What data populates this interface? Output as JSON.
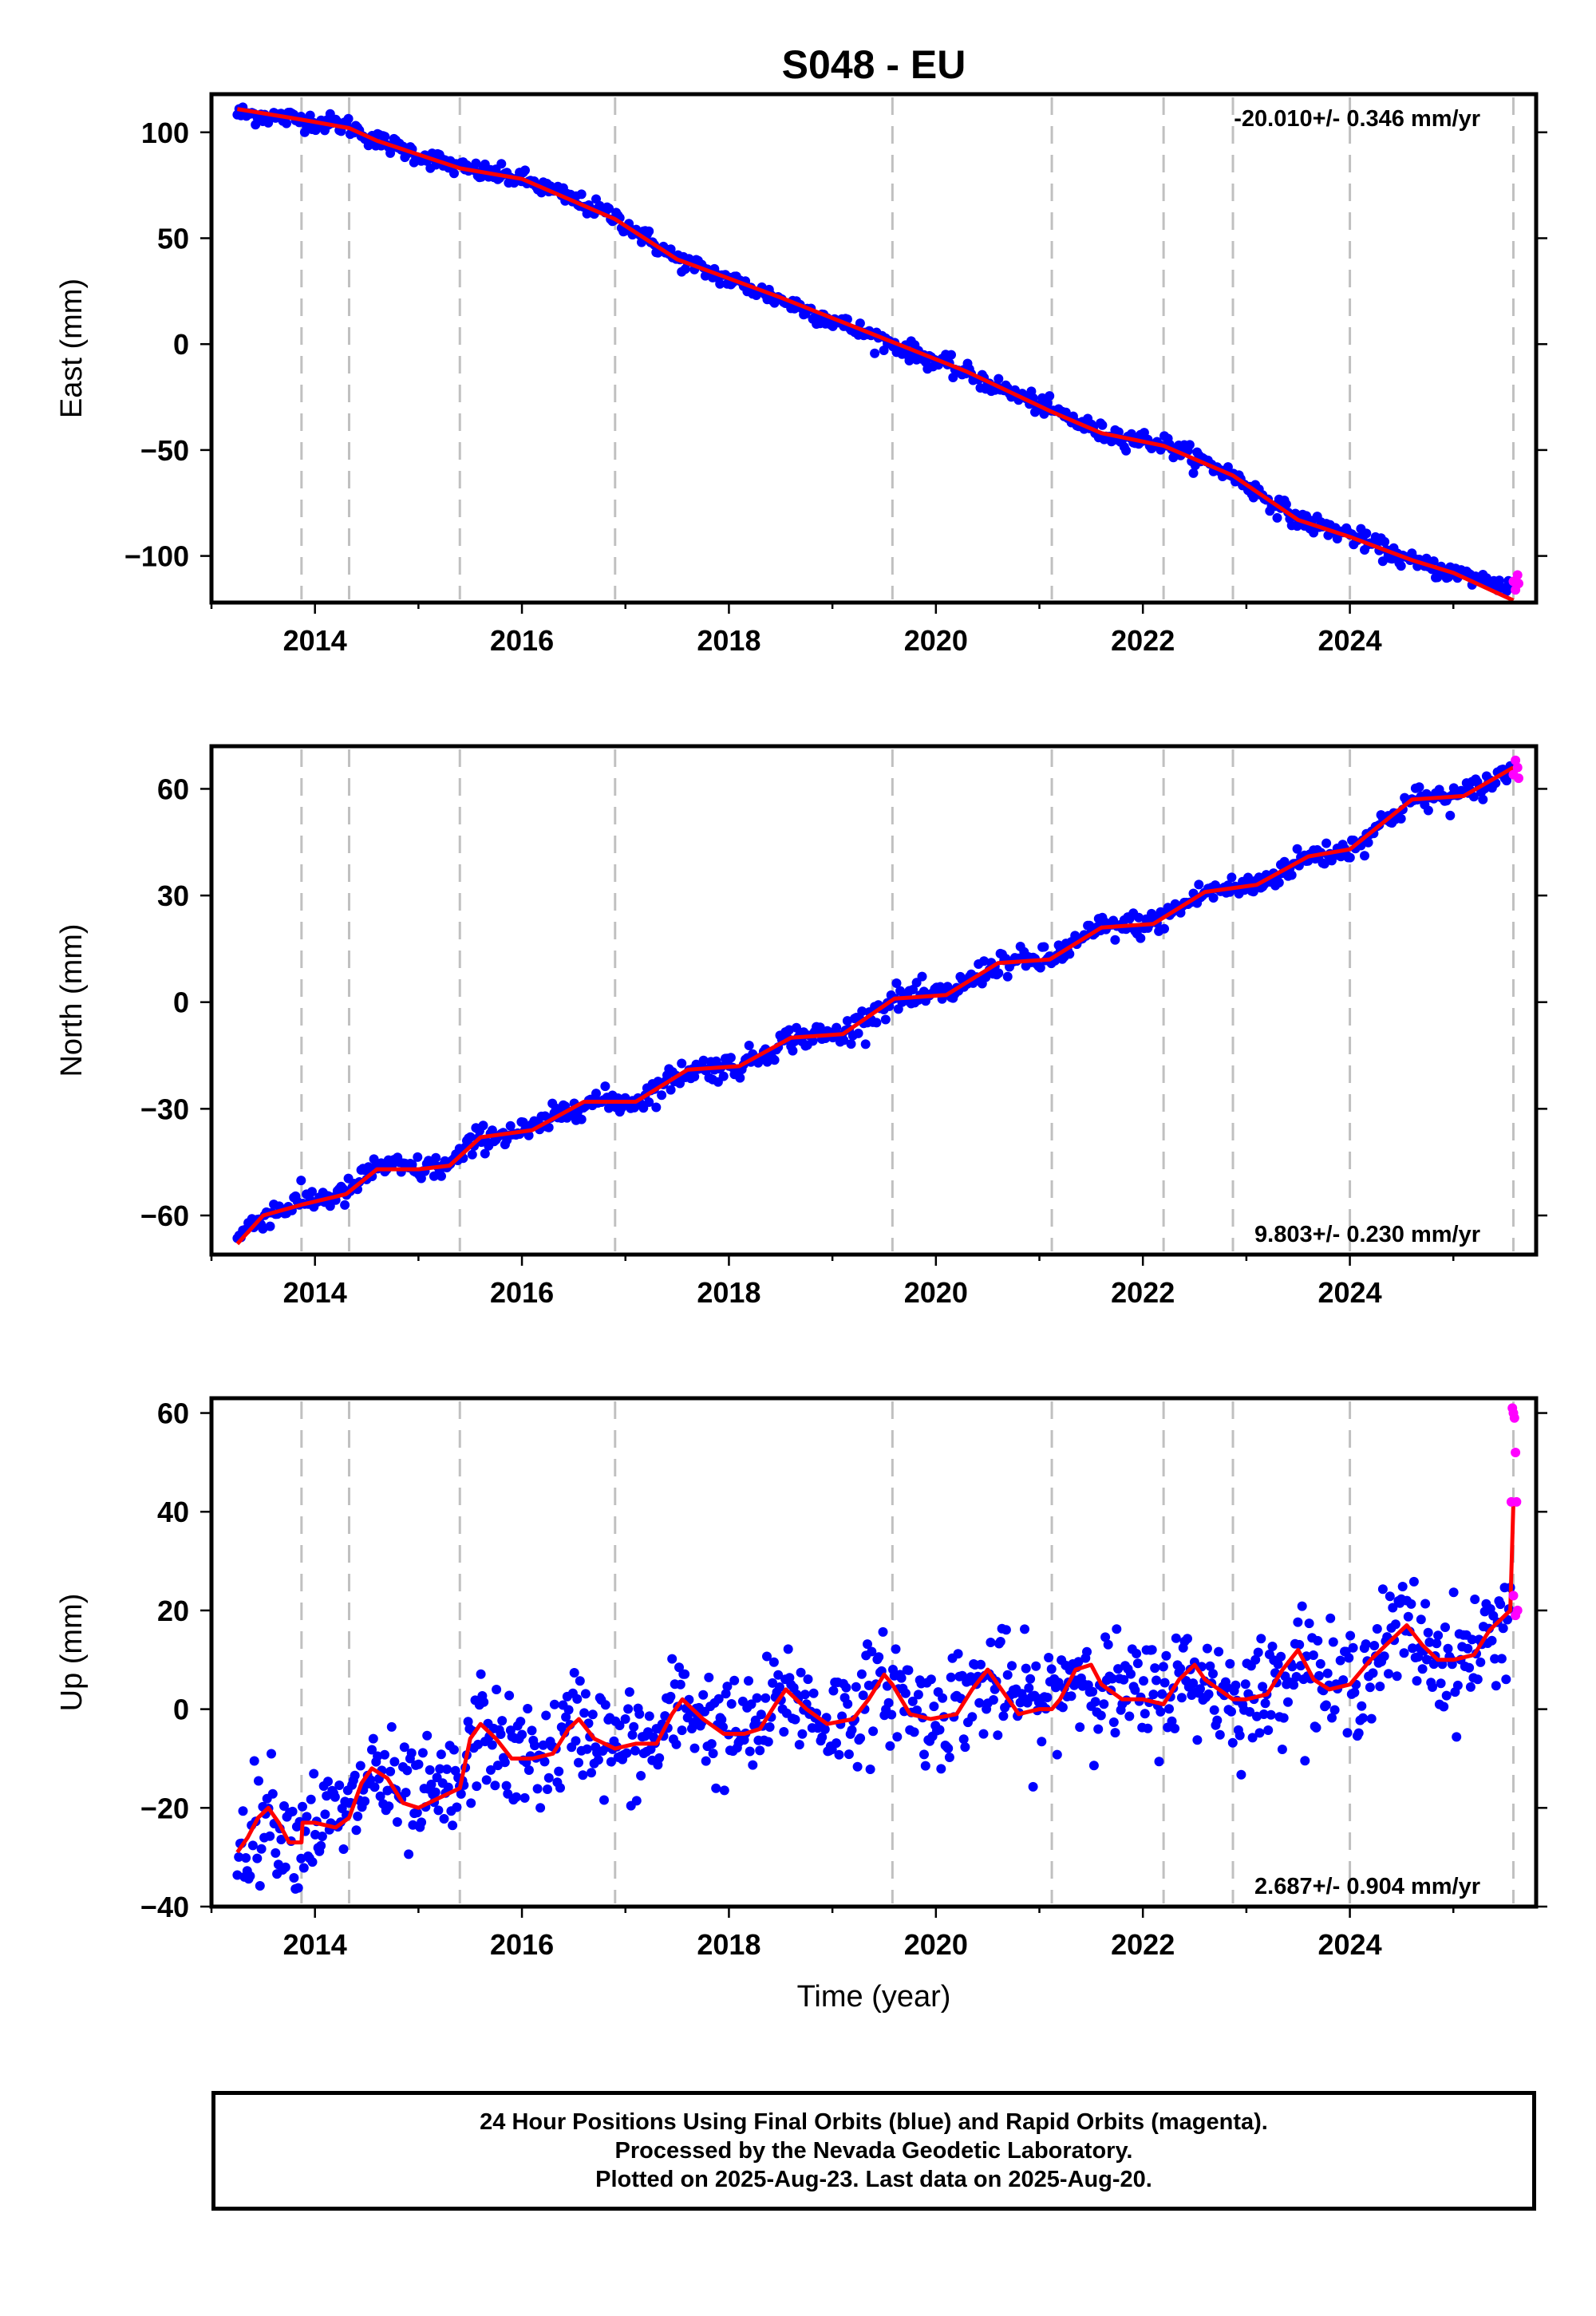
{
  "title": "S048 - EU",
  "colors": {
    "final_points": "#0000ff",
    "rapid_points": "#ff00ff",
    "model_line": "#ff0000",
    "equipment_change_lines": "#c0c0c0"
  },
  "chart_data": [
    {
      "type": "scatter",
      "component": "East",
      "ylabel": "East (mm)",
      "xlabel": "",
      "rate_text": "-20.010+/- 0.346 mm/yr",
      "xlim": [
        2013.0,
        2025.8
      ],
      "ylim": [
        -122,
        118
      ],
      "xticks": [
        2014,
        2016,
        2018,
        2020,
        2022,
        2024
      ],
      "yticks": [
        -100,
        -50,
        0,
        50,
        100
      ],
      "yticklabels": [
        "−100",
        "−50",
        "0",
        "50",
        "100"
      ],
      "equipment_changes": [
        2013.87,
        2014.33,
        2015.4,
        2016.9,
        2019.58,
        2021.12,
        2022.2,
        2022.87,
        2024.0,
        2025.58
      ],
      "model_line": {
        "x": [
          2013.25,
          2013.87,
          2014.33,
          2014.6,
          2015.4,
          2016.0,
          2016.9,
          2017.5,
          2018.5,
          2019.58,
          2020.3,
          2021.12,
          2021.6,
          2022.2,
          2022.87,
          2023.5,
          2024.0,
          2024.6,
          2025.0,
          2025.58
        ],
        "y": [
          111,
          106,
          102,
          96,
          83,
          78,
          59,
          40,
          22,
          1,
          -13,
          -32,
          -42,
          -48,
          -62,
          -83,
          -91,
          -102,
          -108,
          -121
        ]
      },
      "final_series": {
        "trend_x": [
          2013.25,
          2013.87,
          2014.33,
          2014.6,
          2015.4,
          2016.0,
          2016.9,
          2017.5,
          2018.5,
          2019.58,
          2020.3,
          2021.12,
          2021.6,
          2022.2,
          2022.87,
          2023.5,
          2024.0,
          2024.6,
          2025.0,
          2025.58
        ],
        "trend_y": [
          109,
          106,
          103,
          96,
          83,
          78,
          60,
          40,
          21,
          0,
          -14,
          -31,
          -42,
          -47,
          -62,
          -83,
          -90,
          -103,
          -108,
          -115
        ],
        "x_start": 2013.25,
        "x_end": 2025.55,
        "spread": 2.2,
        "count": 700
      },
      "rapid_series": {
        "x": [
          2025.58,
          2025.6,
          2025.62,
          2025.63
        ],
        "y": [
          -112,
          -116,
          -109,
          -113
        ]
      }
    },
    {
      "type": "scatter",
      "component": "North",
      "ylabel": "North (mm)",
      "xlabel": "",
      "rate_text": "9.803+/- 0.230 mm/yr",
      "xlim": [
        2013.0,
        2025.8
      ],
      "ylim": [
        -71,
        72
      ],
      "xticks": [
        2014,
        2016,
        2018,
        2020,
        2022,
        2024
      ],
      "yticks": [
        -60,
        -30,
        0,
        30,
        60
      ],
      "yticklabels": [
        "−60",
        "−30",
        "0",
        "30",
        "60"
      ],
      "equipment_changes": [
        2013.87,
        2014.33,
        2015.4,
        2016.9,
        2019.58,
        2021.12,
        2022.2,
        2022.87,
        2024.0,
        2025.58
      ],
      "model_line": {
        "x": [
          2013.25,
          2013.5,
          2013.87,
          2014.3,
          2014.6,
          2015.0,
          2015.3,
          2015.6,
          2016.1,
          2016.6,
          2017.1,
          2017.6,
          2018.1,
          2018.6,
          2019.1,
          2019.6,
          2020.1,
          2020.6,
          2021.1,
          2021.6,
          2022.1,
          2022.6,
          2023.1,
          2023.6,
          2024.0,
          2024.6,
          2025.1,
          2025.58
        ],
        "y": [
          -68,
          -60,
          -57,
          -54,
          -47,
          -47,
          -46,
          -38,
          -36,
          -28,
          -28,
          -19,
          -18,
          -10,
          -9,
          1,
          2,
          11,
          12,
          21,
          22,
          31,
          33,
          41,
          43,
          57,
          58,
          66
        ]
      },
      "final_series": {
        "trend_x": [
          2013.25,
          2013.5,
          2013.87,
          2014.3,
          2014.6,
          2015.0,
          2015.3,
          2015.6,
          2016.1,
          2016.6,
          2017.1,
          2017.6,
          2018.1,
          2018.6,
          2019.1,
          2019.6,
          2020.1,
          2020.6,
          2021.1,
          2021.6,
          2022.1,
          2022.6,
          2023.1,
          2023.6,
          2024.0,
          2024.6,
          2025.1,
          2025.55
        ],
        "trend_y": [
          -66,
          -60,
          -56,
          -54,
          -46,
          -47,
          -46,
          -38,
          -36,
          -28,
          -28,
          -19,
          -18,
          -10,
          -9,
          1,
          2,
          11,
          12,
          21,
          22,
          31,
          33,
          41,
          43,
          57,
          58,
          65
        ],
        "x_start": 2013.25,
        "x_end": 2025.55,
        "spread": 1.8,
        "count": 700
      },
      "rapid_series": {
        "x": [
          2025.58,
          2025.6,
          2025.62,
          2025.63
        ],
        "y": [
          64,
          68,
          66,
          63
        ]
      }
    },
    {
      "type": "scatter",
      "component": "Up",
      "ylabel": "Up (mm)",
      "xlabel": "Time (year)",
      "rate_text": "2.687+/- 0.904 mm/yr",
      "xlim": [
        2013.0,
        2025.8
      ],
      "ylim": [
        -40,
        63
      ],
      "xticks": [
        2014,
        2016,
        2018,
        2020,
        2022,
        2024
      ],
      "yticks": [
        -40,
        -20,
        0,
        20,
        40,
        60
      ],
      "yticklabels": [
        "−40",
        "−20",
        "0",
        "20",
        "40",
        "60"
      ],
      "equipment_changes": [
        2013.87,
        2014.33,
        2015.4,
        2016.9,
        2019.58,
        2021.12,
        2022.2,
        2022.87,
        2024.0,
        2025.58
      ],
      "model_line": {
        "x": [
          2013.25,
          2013.35,
          2013.45,
          2013.55,
          2013.65,
          2013.75,
          2013.87,
          2013.88,
          2014.0,
          2014.2,
          2014.33,
          2014.45,
          2014.55,
          2014.7,
          2014.85,
          2015.0,
          2015.2,
          2015.4,
          2015.5,
          2015.6,
          2015.75,
          2015.9,
          2016.1,
          2016.3,
          2016.45,
          2016.55,
          2016.7,
          2016.9,
          2017.1,
          2017.3,
          2017.45,
          2017.55,
          2017.75,
          2017.95,
          2018.15,
          2018.3,
          2018.45,
          2018.55,
          2018.75,
          2018.95,
          2019.2,
          2019.35,
          2019.5,
          2019.58,
          2019.75,
          2019.95,
          2020.2,
          2020.35,
          2020.5,
          2020.6,
          2020.8,
          2021.0,
          2021.12,
          2021.2,
          2021.35,
          2021.5,
          2021.6,
          2021.8,
          2022.0,
          2022.2,
          2022.35,
          2022.5,
          2022.6,
          2022.87,
          2023.0,
          2023.2,
          2023.35,
          2023.5,
          2023.65,
          2023.8,
          2024.0,
          2024.2,
          2024.4,
          2024.55,
          2024.7,
          2024.85,
          2025.0,
          2025.2,
          2025.35,
          2025.5,
          2025.55,
          2025.58
        ],
        "y": [
          -29,
          -26,
          -22,
          -20,
          -23,
          -27,
          -27,
          -23,
          -23,
          -24,
          -22,
          -15,
          -12,
          -14,
          -19,
          -20,
          -18,
          -16,
          -6,
          -3,
          -6,
          -10,
          -10,
          -9,
          -4,
          -2,
          -6,
          -8,
          -7,
          -7,
          -1,
          2,
          -2,
          -5,
          -5,
          -4,
          1,
          4,
          0,
          -3,
          -2,
          2,
          7,
          5,
          -1,
          -2,
          -1,
          4,
          8,
          5,
          -1,
          0,
          0,
          2,
          8,
          9,
          5,
          2,
          2,
          1,
          6,
          9,
          6,
          2,
          2,
          3,
          8,
          12,
          6,
          4,
          5,
          10,
          14,
          17,
          13,
          10,
          10,
          11,
          16,
          19,
          20,
          42
        ]
      },
      "final_series": {
        "trend_x": [
          2013.25,
          2013.55,
          2013.75,
          2014.0,
          2014.33,
          2014.55,
          2014.85,
          2015.2,
          2015.4,
          2015.6,
          2015.9,
          2016.3,
          2016.55,
          2016.9,
          2017.3,
          2017.55,
          2017.95,
          2018.3,
          2018.55,
          2018.95,
          2019.35,
          2019.58,
          2019.95,
          2020.35,
          2020.6,
          2021.0,
          2021.35,
          2021.6,
          2022.0,
          2022.35,
          2022.6,
          2022.87,
          2023.2,
          2023.5,
          2023.8,
          2024.0,
          2024.4,
          2024.55,
          2024.85,
          2025.2,
          2025.5,
          2025.55
        ],
        "trend_y": [
          -28,
          -20,
          -27,
          -23,
          -22,
          -12,
          -19,
          -18,
          -16,
          -3,
          -10,
          -9,
          -2,
          -8,
          -7,
          2,
          -5,
          -4,
          4,
          -3,
          2,
          5,
          -2,
          4,
          5,
          0,
          8,
          5,
          2,
          6,
          6,
          2,
          3,
          12,
          4,
          5,
          14,
          17,
          10,
          11,
          19,
          20
        ],
        "x_start": 2013.25,
        "x_end": 2025.55,
        "spread": 5.5,
        "count": 900
      },
      "rapid_series": {
        "x": [
          2025.56,
          2025.57,
          2025.58,
          2025.59,
          2025.6,
          2025.61,
          2025.62,
          2025.58,
          2025.6
        ],
        "y": [
          42,
          61,
          60,
          59,
          52,
          42,
          20,
          23,
          19
        ]
      }
    }
  ],
  "footer": {
    "line1": "24 Hour Positions Using Final Orbits (blue) and Rapid Orbits (magenta).",
    "line2": "Processed by the Nevada Geodetic Laboratory.",
    "line3": "Plotted on 2025-Aug-23. Last data on 2025-Aug-20."
  }
}
